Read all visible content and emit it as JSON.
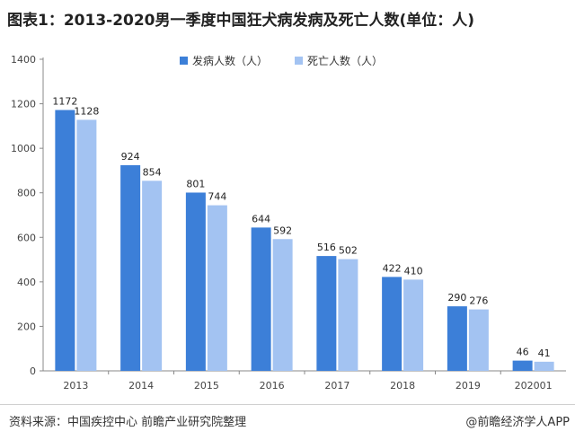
{
  "header": {
    "title": "图表1：2013-2020男一季度中国狂犬病发病及死亡人数(单位：人)"
  },
  "footer": {
    "source": "资料来源：中国疾控中心 前瞻产业研究院整理",
    "brand": "@前瞻经济学人APP"
  },
  "chart_data": {
    "type": "bar",
    "categories": [
      "2013",
      "2014",
      "2015",
      "2016",
      "2017",
      "2018",
      "2019",
      "202001"
    ],
    "series": [
      {
        "name": "发病人数（人）",
        "color": "#3c7fd8",
        "values": [
          1172,
          924,
          801,
          644,
          516,
          422,
          290,
          46
        ]
      },
      {
        "name": "死亡人数（人）",
        "color": "#a3c3f2",
        "values": [
          1128,
          854,
          744,
          592,
          502,
          410,
          276,
          41
        ]
      }
    ],
    "ylim": [
      0,
      1400
    ],
    "yticks": [
      0,
      200,
      400,
      600,
      800,
      1000,
      1200,
      1400
    ],
    "grid": false,
    "legend": "top-right"
  }
}
